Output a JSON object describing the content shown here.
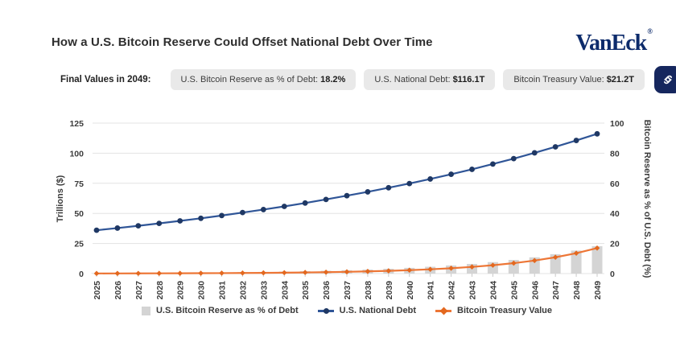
{
  "title": "How a U.S. Bitcoin Reserve Could Offset National Debt Over Time",
  "brand": {
    "name": "VanEck",
    "mark": "®"
  },
  "header": {
    "label": "Final Values in 2049:",
    "pills": [
      {
        "label": "U.S. Bitcoin Reserve as % of Debt: ",
        "value": "18.2%"
      },
      {
        "label": "U.S. National Debt: ",
        "value": "$116.1T"
      },
      {
        "label": "Bitcoin Treasury Value: ",
        "value": "$21.2T"
      }
    ],
    "link_button_icon": "link-icon"
  },
  "chart_data": {
    "type": "combo",
    "title": "How a U.S. Bitcoin Reserve Could Offset National Debt Over Time",
    "years": [
      2025,
      2026,
      2027,
      2028,
      2029,
      2030,
      2031,
      2032,
      2033,
      2034,
      2035,
      2036,
      2037,
      2038,
      2039,
      2040,
      2041,
      2042,
      2043,
      2044,
      2045,
      2046,
      2047,
      2048,
      2049
    ],
    "left_axis": {
      "label": "Trillions ($)",
      "ticks": [
        0,
        25,
        50,
        75,
        100,
        125
      ],
      "max": 125
    },
    "right_axis": {
      "label": "Bitcoin Reserve as % of U.S. Debt (%)",
      "ticks": [
        0,
        20,
        40,
        60,
        80,
        100
      ],
      "max": 100
    },
    "grid": true,
    "legend_position": "bottom",
    "series": [
      {
        "name": "U.S. Bitcoin Reserve as % of Debt",
        "type": "bar",
        "axis": "right",
        "color": "#d4d4d4",
        "values": [
          0.28,
          0.33,
          0.39,
          0.47,
          0.56,
          0.66,
          0.79,
          0.94,
          1.12,
          1.33,
          1.59,
          1.89,
          2.25,
          2.68,
          3.19,
          3.8,
          4.52,
          5.38,
          6.4,
          7.63,
          9.08,
          10.8,
          12.9,
          15.3,
          18.2
        ]
      },
      {
        "name": "U.S. National Debt",
        "type": "line",
        "axis": "left",
        "color": "#2f5597",
        "marker": "circle",
        "marker_color": "#1f3864",
        "values": [
          36.0,
          37.8,
          39.7,
          41.7,
          43.8,
          45.9,
          48.2,
          50.7,
          53.2,
          55.8,
          58.6,
          61.6,
          64.7,
          67.9,
          71.3,
          74.8,
          78.6,
          82.5,
          86.6,
          91.0,
          95.5,
          100.3,
          105.3,
          110.6,
          116.1
        ]
      },
      {
        "name": "Bitcoin Treasury Value",
        "type": "line",
        "axis": "left",
        "color": "#ed7636",
        "marker": "diamond",
        "marker_color": "#e3681f",
        "values": [
          0.1,
          0.13,
          0.16,
          0.2,
          0.24,
          0.31,
          0.38,
          0.48,
          0.6,
          0.75,
          0.93,
          1.16,
          1.46,
          1.82,
          2.27,
          2.84,
          3.55,
          4.44,
          5.55,
          6.94,
          8.67,
          10.84,
          13.55,
          16.94,
          21.2
        ]
      }
    ]
  }
}
